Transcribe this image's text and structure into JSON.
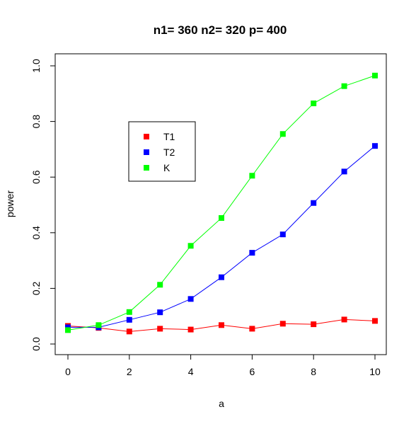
{
  "chart_data": {
    "type": "line",
    "title": "n1= 360 n2= 320 p= 400",
    "xlabel": "a",
    "ylabel": "power",
    "x": [
      0,
      1,
      2,
      3,
      4,
      5,
      6,
      7,
      8,
      9,
      10
    ],
    "xlim": [
      0,
      10
    ],
    "ylim": [
      0,
      1
    ],
    "xticks": [
      "0",
      "2",
      "4",
      "6",
      "8",
      "10"
    ],
    "yticks": [
      "0.0",
      "0.2",
      "0.4",
      "0.6",
      "0.8",
      "1.0"
    ],
    "grid": false,
    "legend_position": "upper-left",
    "series": [
      {
        "name": "T1",
        "color": "#ff0000",
        "values": [
          0.065,
          0.058,
          0.045,
          0.055,
          0.052,
          0.068,
          0.055,
          0.073,
          0.071,
          0.088,
          0.083
        ]
      },
      {
        "name": "T2",
        "color": "#0000ff",
        "values": [
          0.06,
          0.06,
          0.087,
          0.114,
          0.162,
          0.24,
          0.328,
          0.394,
          0.507,
          0.62,
          0.712
        ]
      },
      {
        "name": "K",
        "color": "#00ff00",
        "values": [
          0.05,
          0.068,
          0.115,
          0.213,
          0.353,
          0.453,
          0.605,
          0.755,
          0.865,
          0.927,
          0.965
        ]
      }
    ]
  }
}
